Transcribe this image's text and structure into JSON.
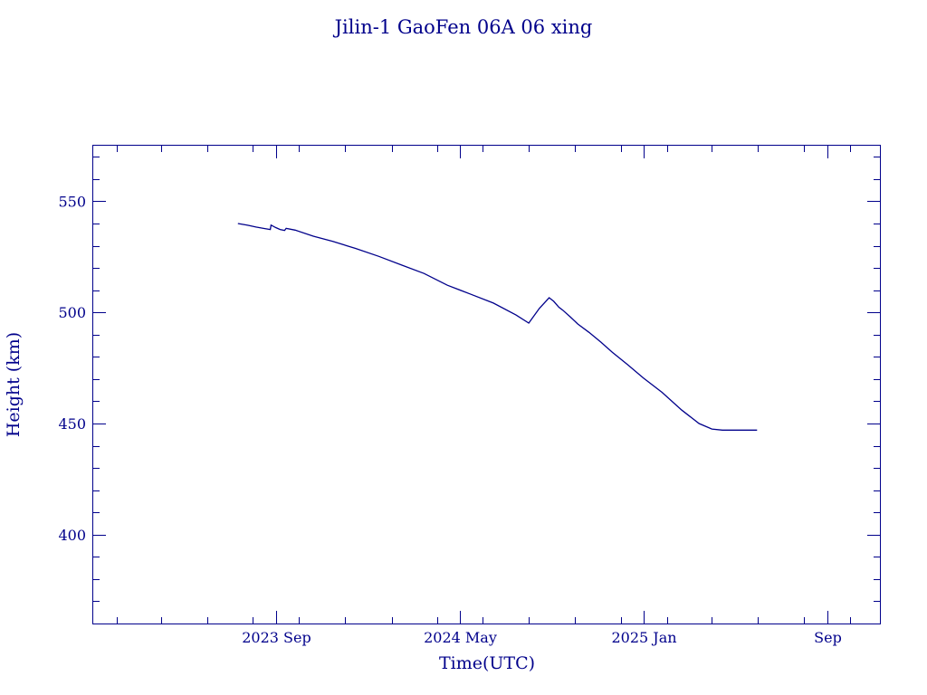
{
  "chart_data": {
    "type": "line",
    "title": "Jilin-1 GaoFen 06A 06 xing",
    "xlabel": "Time(UTC)",
    "ylabel": "Height (km)",
    "ylim": [
      360,
      575
    ],
    "xlim": [
      "2023-01-01",
      "2025-11-10"
    ],
    "y_ticks": [
      400,
      450,
      500,
      550
    ],
    "x_ticks": [
      {
        "label": "2023 Sep",
        "date": "2023-09-01"
      },
      {
        "label": "2024 May",
        "date": "2024-05-01"
      },
      {
        "label": "2025 Jan",
        "date": "2025-01-01"
      },
      {
        "label": "Sep",
        "date": "2025-09-01"
      }
    ],
    "grid": false,
    "colors": {
      "axis": "#00008b",
      "line": "#00008b"
    },
    "series": [
      {
        "x": [
          "2023-07-12",
          "2023-07-25",
          "2023-08-05",
          "2023-08-15",
          "2023-08-24",
          "2023-08-25",
          "2023-08-31",
          "2023-09-06",
          "2023-09-12",
          "2023-09-14",
          "2023-09-26",
          "2023-10-20",
          "2023-11-15",
          "2023-12-15",
          "2024-01-15",
          "2024-02-15",
          "2024-03-15",
          "2024-04-15",
          "2024-05-15",
          "2024-06-15",
          "2024-07-15",
          "2024-08-01",
          "2024-08-15",
          "2024-08-28",
          "2024-09-03",
          "2024-09-10",
          "2024-09-15",
          "2024-09-25",
          "2024-10-05",
          "2024-10-20",
          "2024-11-05",
          "2024-11-20",
          "2024-12-10",
          "2024-12-31",
          "2025-01-25",
          "2025-02-20",
          "2025-03-15",
          "2025-04-01",
          "2025-04-15",
          "2025-05-01",
          "2025-05-15",
          "2025-05-31"
        ],
        "y": [
          540.0,
          539.2,
          538.4,
          537.8,
          537.3,
          539.3,
          538.2,
          537.3,
          536.9,
          537.8,
          537.0,
          534.3,
          531.9,
          528.8,
          525.2,
          521.2,
          517.5,
          512.2,
          508.3,
          504.2,
          498.8,
          495.2,
          501.8,
          506.6,
          505.0,
          502.3,
          501.0,
          498.0,
          494.8,
          491.0,
          486.5,
          482.0,
          476.5,
          470.5,
          464.0,
          456.0,
          450.0,
          447.5,
          447.0,
          447.0,
          447.0,
          447.0
        ]
      }
    ]
  }
}
